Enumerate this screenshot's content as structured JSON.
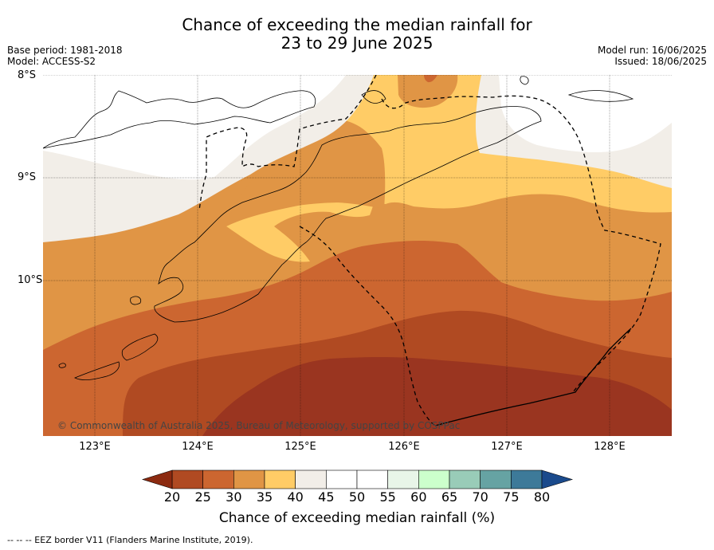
{
  "title_line1": "Chance of exceeding the median rainfall for",
  "title_line2": "23 to 29 June 2025",
  "base_period": "Base period: 1981-2018",
  "model": "Model: ACCESS-S2",
  "model_run": "Model run: 16/06/2025",
  "issued": "Issued: 18/06/2025",
  "lat_labels": [
    "8°S",
    "9°S",
    "10°S"
  ],
  "lon_labels": [
    "123°E",
    "124°E",
    "125°E",
    "126°E",
    "127°E",
    "128°E"
  ],
  "copyright": "© Commonwealth of Australia 2025, Bureau of Meteorology, supported by COSPPac",
  "colorbar": {
    "title": "Chance of exceeding median rainfall (%)",
    "ticks": [
      "20",
      "25",
      "30",
      "35",
      "40",
      "45",
      "50",
      "55",
      "60",
      "65",
      "70",
      "75",
      "80"
    ],
    "colors": [
      "#8c2a10",
      "#b04a22",
      "#cc6630",
      "#e09545",
      "#ffcc66",
      "#f2eee8",
      "#ffffff",
      "#ffffff",
      "#e8f5e8",
      "#ccffcc",
      "#99ccb8",
      "#66a3a3",
      "#3d7a99",
      "#1a4a8c"
    ],
    "under_color": "#8c2a10",
    "over_color": "#1a4a8c"
  },
  "legend_footer": "--  --  -- EEZ border V11 (Flanders Marine Institute, 2019).",
  "map_colors": {
    "band_20_25": "#9a3520",
    "band_25_30": "#b04a22",
    "band_30_35": "#cc6630",
    "band_35_40": "#e09545",
    "band_40_45": "#ffcc66",
    "band_45_50": "#f2eee8",
    "band_50_55": "#ffffff"
  }
}
